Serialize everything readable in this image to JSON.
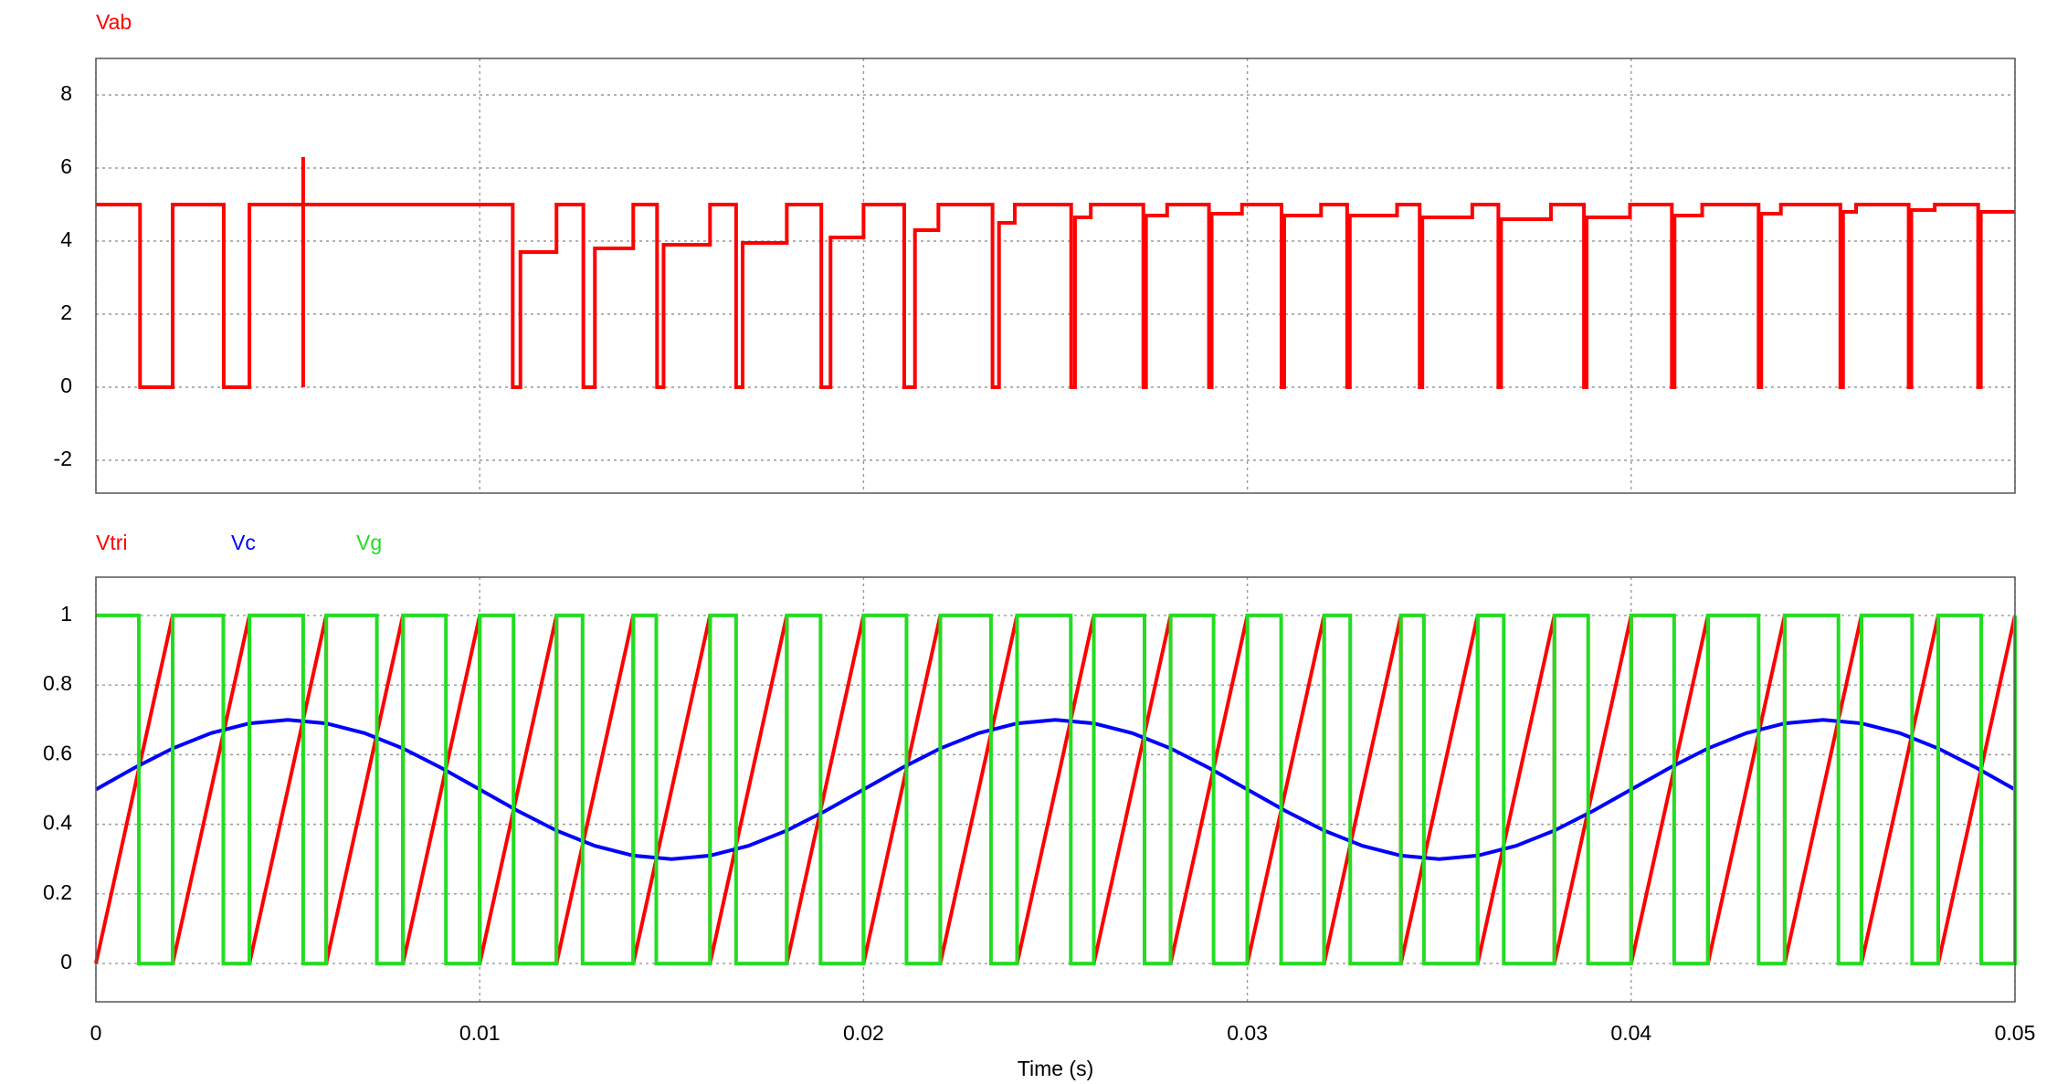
{
  "chart_data": [
    {
      "type": "line",
      "xlim": [
        0,
        0.05
      ],
      "xticks": [
        0,
        0.01,
        0.02,
        0.03,
        0.04,
        0.05
      ],
      "ylim": [
        -2.9,
        9
      ],
      "yticks": [
        -2,
        0,
        2,
        4,
        6,
        8
      ],
      "grid": true,
      "series": [
        {
          "name": "Vab",
          "color": "#ff0000",
          "x": [
            0,
            0.00115,
            0.00115,
            0.002,
            0.002,
            0.00333,
            0.00333,
            0.004,
            0.004,
            0.0054,
            0.0054,
            0.0054,
            0.0054,
            0.01086,
            0.01086,
            0.01106,
            0.01106,
            0.012,
            0.012,
            0.0127,
            0.0127,
            0.013,
            0.013,
            0.014,
            0.014,
            0.01462,
            0.01462,
            0.01479,
            0.01479,
            0.016,
            0.016,
            0.01668,
            0.01668,
            0.01685,
            0.01685,
            0.018,
            0.018,
            0.0189,
            0.0189,
            0.01914,
            0.01914,
            0.02,
            0.02,
            0.02106,
            0.02106,
            0.02134,
            0.02134,
            0.02195,
            0.02195,
            0.02336,
            0.02336,
            0.02353,
            0.02353,
            0.02394,
            0.02394,
            0.02541,
            0.02541,
            0.02551,
            0.02551,
            0.02592,
            0.02592,
            0.02729,
            0.02729,
            0.02736,
            0.02736,
            0.02791,
            0.02791,
            0.029,
            0.029,
            0.02907,
            0.02907,
            0.02986,
            0.02986,
            0.03089,
            0.03089,
            0.03096,
            0.03096,
            0.03192,
            0.03192,
            0.0326,
            0.0326,
            0.03267,
            0.03267,
            0.0339,
            0.0339,
            0.03449,
            0.03449,
            0.03456,
            0.03456,
            0.03586,
            0.03586,
            0.03654,
            0.03654,
            0.03661,
            0.03661,
            0.03791,
            0.03791,
            0.03877,
            0.03877,
            0.03884,
            0.03884,
            0.03997,
            0.03997,
            0.04106,
            0.04106,
            0.04113,
            0.04113,
            0.04185,
            0.04185,
            0.04332,
            0.04332,
            0.04339,
            0.04339,
            0.0439,
            0.0439,
            0.04545,
            0.04545,
            0.04552,
            0.04552,
            0.04586,
            0.04586,
            0.04723,
            0.04723,
            0.0473,
            0.0473,
            0.04791,
            0.04791,
            0.04904,
            0.04904,
            0.04911,
            0.04911,
            0.05
          ],
          "values": [
            5,
            5,
            0,
            0,
            5,
            5,
            0,
            0,
            5,
            5,
            6.3,
            0,
            5,
            5,
            0,
            0,
            3.7,
            3.7,
            5,
            5,
            0,
            0,
            3.8,
            3.8,
            5,
            5,
            0,
            0,
            3.9,
            3.9,
            5,
            5,
            0,
            0,
            3.95,
            3.95,
            5,
            5,
            0,
            0,
            4.1,
            4.1,
            5,
            5,
            0,
            0,
            4.3,
            4.3,
            5,
            5,
            0,
            0,
            4.5,
            4.5,
            5,
            5,
            0,
            0,
            4.65,
            4.65,
            5,
            5,
            0,
            0,
            4.7,
            4.7,
            5,
            5,
            0,
            0,
            4.75,
            4.75,
            5,
            5,
            0,
            0,
            4.7,
            4.7,
            5,
            5,
            0,
            0,
            4.7,
            4.7,
            5,
            5,
            0,
            0,
            4.65,
            4.65,
            5,
            5,
            0,
            0,
            4.6,
            4.6,
            5,
            5,
            0,
            0,
            4.65,
            4.65,
            5,
            5,
            0,
            0,
            4.7,
            4.7,
            5,
            5,
            0,
            0,
            4.75,
            4.75,
            5,
            5,
            0,
            0,
            4.8,
            4.8,
            5,
            5,
            0,
            0,
            4.85,
            4.85,
            5,
            5,
            0,
            0,
            4.8,
            4.8
          ]
        }
      ]
    },
    {
      "type": "line",
      "xlabel": "Time (s)",
      "xlim": [
        0,
        0.05
      ],
      "xticks": [
        0,
        0.01,
        0.02,
        0.03,
        0.04,
        0.05
      ],
      "ylim": [
        -0.11,
        1.11
      ],
      "yticks": [
        0,
        0.2,
        0.4,
        0.6,
        0.8,
        1
      ],
      "grid": true,
      "series": [
        {
          "name": "Vtri",
          "color": "#ff0000",
          "x": [
            0,
            0.002,
            0.002,
            0.004,
            0.004,
            0.006,
            0.006,
            0.008,
            0.008,
            0.01,
            0.01,
            0.012,
            0.012,
            0.014,
            0.014,
            0.016,
            0.016,
            0.018,
            0.018,
            0.02,
            0.02,
            0.022,
            0.022,
            0.024,
            0.024,
            0.026,
            0.026,
            0.028,
            0.028,
            0.03,
            0.03,
            0.032,
            0.032,
            0.034,
            0.034,
            0.036,
            0.036,
            0.038,
            0.038,
            0.04,
            0.04,
            0.042,
            0.042,
            0.044,
            0.044,
            0.046,
            0.046,
            0.048,
            0.048,
            0.05
          ],
          "values": [
            0,
            1,
            0,
            1,
            0,
            1,
            0,
            1,
            0,
            1,
            0,
            1,
            0,
            1,
            0,
            1,
            0,
            1,
            0,
            1,
            0,
            1,
            0,
            1,
            0,
            1,
            0,
            1,
            0,
            1,
            0,
            1,
            0,
            1,
            0,
            1,
            0,
            1,
            0,
            1,
            0,
            1,
            0,
            1,
            0,
            1,
            0,
            1,
            0,
            1
          ]
        },
        {
          "name": "Vc",
          "color": "#0000ff",
          "x": [
            0,
            0.001,
            0.002,
            0.003,
            0.004,
            0.005,
            0.006,
            0.007,
            0.008,
            0.009,
            0.01,
            0.011,
            0.012,
            0.013,
            0.014,
            0.015,
            0.016,
            0.017,
            0.018,
            0.019,
            0.02,
            0.021,
            0.022,
            0.023,
            0.024,
            0.025,
            0.026,
            0.027,
            0.028,
            0.029,
            0.03,
            0.031,
            0.032,
            0.033,
            0.034,
            0.035,
            0.036,
            0.037,
            0.038,
            0.039,
            0.04,
            0.041,
            0.042,
            0.043,
            0.044,
            0.045,
            0.046,
            0.047,
            0.048,
            0.049,
            0.05
          ],
          "values": [
            0.5,
            0.562,
            0.618,
            0.662,
            0.69,
            0.7,
            0.69,
            0.662,
            0.618,
            0.562,
            0.5,
            0.438,
            0.382,
            0.338,
            0.31,
            0.3,
            0.31,
            0.338,
            0.382,
            0.438,
            0.5,
            0.562,
            0.618,
            0.662,
            0.69,
            0.7,
            0.69,
            0.662,
            0.618,
            0.562,
            0.5,
            0.438,
            0.382,
            0.338,
            0.31,
            0.3,
            0.31,
            0.338,
            0.382,
            0.438,
            0.5,
            0.562,
            0.618,
            0.662,
            0.69,
            0.7,
            0.69,
            0.662,
            0.618,
            0.562,
            0.5
          ]
        },
        {
          "name": "Vg",
          "color": "#22dd22",
          "x": [
            0,
            0.00112,
            0.00112,
            0.002,
            0.002,
            0.00332,
            0.00332,
            0.004,
            0.004,
            0.0054,
            0.0054,
            0.006,
            0.006,
            0.00732,
            0.00732,
            0.008,
            0.008,
            0.00912,
            0.00912,
            0.01,
            0.01,
            0.01088,
            0.01088,
            0.012,
            0.012,
            0.01268,
            0.01268,
            0.014,
            0.014,
            0.0146,
            0.0146,
            0.016,
            0.016,
            0.01668,
            0.01668,
            0.018,
            0.018,
            0.01888,
            0.01888,
            0.02,
            0.02,
            0.02112,
            0.02112,
            0.022,
            0.022,
            0.02332,
            0.02332,
            0.024,
            0.024,
            0.0254,
            0.0254,
            0.026,
            0.026,
            0.02732,
            0.02732,
            0.028,
            0.028,
            0.02912,
            0.02912,
            0.03,
            0.03,
            0.03088,
            0.03088,
            0.032,
            0.032,
            0.03268,
            0.03268,
            0.034,
            0.034,
            0.0346,
            0.0346,
            0.036,
            0.036,
            0.03668,
            0.03668,
            0.038,
            0.038,
            0.03888,
            0.03888,
            0.04,
            0.04,
            0.04112,
            0.04112,
            0.042,
            0.042,
            0.04332,
            0.04332,
            0.044,
            0.044,
            0.0454,
            0.0454,
            0.046,
            0.046,
            0.04732,
            0.04732,
            0.048,
            0.048,
            0.04912,
            0.04912,
            0.05,
            0.05
          ],
          "values": [
            1,
            1,
            0,
            0,
            1,
            1,
            0,
            0,
            1,
            1,
            0,
            0,
            1,
            1,
            0,
            0,
            1,
            1,
            0,
            0,
            1,
            1,
            0,
            0,
            1,
            1,
            0,
            0,
            1,
            1,
            0,
            0,
            1,
            1,
            0,
            0,
            1,
            1,
            0,
            0,
            1,
            1,
            0,
            0,
            1,
            1,
            0,
            0,
            1,
            1,
            0,
            0,
            1,
            1,
            0,
            0,
            1,
            1,
            0,
            0,
            1,
            1,
            0,
            0,
            1,
            1,
            0,
            0,
            1,
            1,
            0,
            0,
            1,
            1,
            0,
            0,
            1,
            1,
            0,
            0,
            1,
            1,
            0,
            0,
            1,
            1,
            0,
            0,
            1,
            1,
            0,
            0,
            1,
            1,
            0,
            0,
            1,
            1,
            0,
            0,
            1
          ]
        }
      ]
    }
  ]
}
